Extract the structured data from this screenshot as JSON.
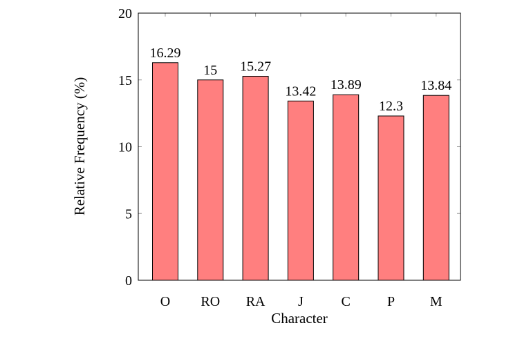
{
  "chart_data": {
    "type": "bar",
    "categories": [
      "O",
      "RO",
      "RA",
      "J",
      "C",
      "P",
      "M"
    ],
    "values": [
      16.29,
      15,
      15.27,
      13.42,
      13.89,
      12.3,
      13.84
    ],
    "data_labels": [
      "16.29",
      "15",
      "15.27",
      "13.42",
      "13.89",
      "12.3",
      "13.84"
    ],
    "xlabel": "Character",
    "ylabel": "Relative Frequency (%)",
    "ylim": [
      0,
      20
    ],
    "yticks": [
      0,
      5,
      10,
      15,
      20
    ],
    "grid": false,
    "bar_color": "#ff7f7f",
    "bar_edge_color": "#000000"
  }
}
